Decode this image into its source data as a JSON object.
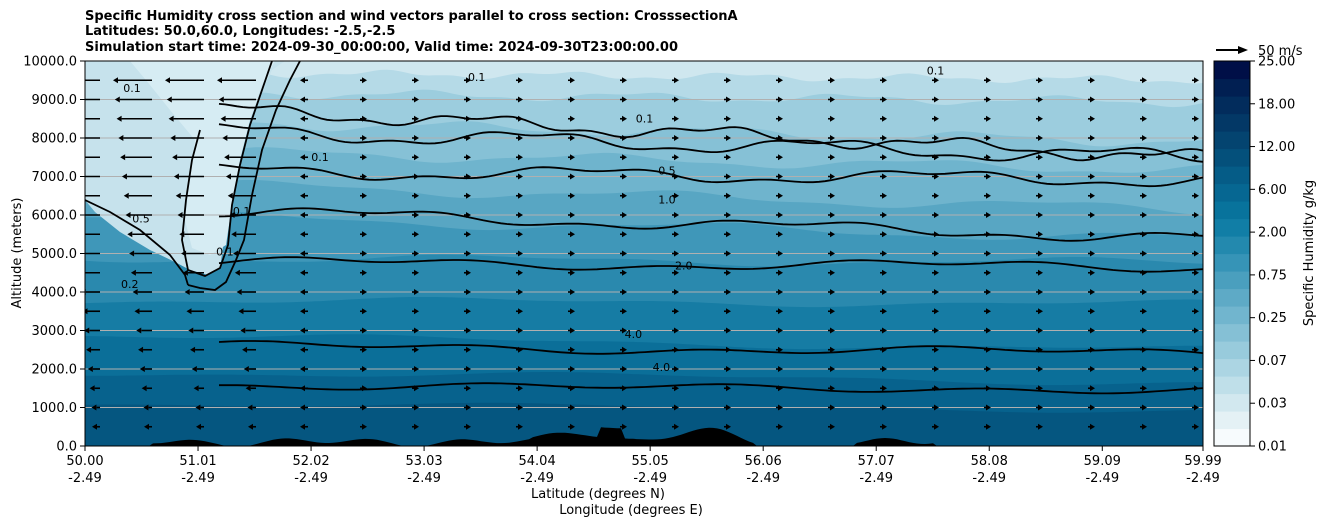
{
  "header": {
    "title_line1": "Specific Humidity cross section and wind vectors parallel to cross section: CrosssectionA",
    "title_line2": "Latitudes: 50.0,60.0, Longitudes: -2.5,-2.5",
    "title_line3": "Simulation start time: 2024-09-30_00:00:00, Valid time: 2024-09-30T23:00:00.00"
  },
  "wind_key": {
    "label": "50 m/s",
    "speed": 50
  },
  "colorbar": {
    "label": "Specific Humidity g/kg",
    "ticks": [
      "25.00",
      "18.00",
      "12.00",
      "6.00",
      "2.00",
      "0.75",
      "0.25",
      "0.07",
      "0.03",
      "0.01"
    ],
    "colors": [
      "#f7fbfd",
      "#e4f1f5",
      "#d2e8ef",
      "#bfdfe9",
      "#acd5e3",
      "#98cbdc",
      "#85c0d5",
      "#71b5ce",
      "#5eaac6",
      "#4a9fbe",
      "#3694b7",
      "#2389ae",
      "#117ea6",
      "#08739c",
      "#066792",
      "#055c87",
      "#04507b",
      "#044470",
      "#033866",
      "#022c5c",
      "#011f52",
      "#000f47"
    ]
  },
  "chart_data": {
    "type": "heatmap",
    "title": "Specific Humidity cross section and wind vectors parallel to cross section: CrosssectionA",
    "ylabel": "Altitude (meters)",
    "xlabel_lines": [
      "Latitude (degrees N)",
      "Longitude (degrees E)"
    ],
    "ylim": [
      0,
      10000
    ],
    "yticks": [
      "0.0",
      "1000.0",
      "2000.0",
      "3000.0",
      "4000.0",
      "5000.0",
      "6000.0",
      "7000.0",
      "8000.0",
      "9000.0",
      "10000.0"
    ],
    "xticks": [
      {
        "lat": "50.00",
        "lon": "-2.49"
      },
      {
        "lat": "51.01",
        "lon": "-2.49"
      },
      {
        "lat": "52.02",
        "lon": "-2.49"
      },
      {
        "lat": "53.03",
        "lon": "-2.49"
      },
      {
        "lat": "54.04",
        "lon": "-2.49"
      },
      {
        "lat": "55.05",
        "lon": "-2.49"
      },
      {
        "lat": "56.06",
        "lon": "-2.49"
      },
      {
        "lat": "57.07",
        "lon": "-2.49"
      },
      {
        "lat": "58.08",
        "lon": "-2.49"
      },
      {
        "lat": "59.09",
        "lon": "-2.49"
      },
      {
        "lat": "59.99",
        "lon": "-2.49"
      }
    ],
    "grid": "horizontal",
    "contour_labels": [
      {
        "text": "0.1",
        "lat": 53.5,
        "alt": 9480
      },
      {
        "text": "0.1",
        "lat": 50.42,
        "alt": 9200
      },
      {
        "text": "0.1",
        "lat": 57.6,
        "alt": 9650
      },
      {
        "text": "0.1",
        "lat": 55.0,
        "alt": 8400
      },
      {
        "text": "0.1",
        "lat": 51.4,
        "alt": 6000
      },
      {
        "text": "0.1",
        "lat": 51.25,
        "alt": 4950
      },
      {
        "text": "0.1",
        "lat": 52.1,
        "alt": 7400
      },
      {
        "text": "0.5",
        "lat": 50.5,
        "alt": 5800
      },
      {
        "text": "0.2",
        "lat": 50.4,
        "alt": 4100
      },
      {
        "text": "0.5",
        "lat": 55.2,
        "alt": 7050
      },
      {
        "text": "1.0",
        "lat": 55.2,
        "alt": 6300
      },
      {
        "text": "2.0",
        "lat": 55.35,
        "alt": 4580
      },
      {
        "text": "4.0",
        "lat": 54.9,
        "alt": 2800
      },
      {
        "text": "4.0",
        "lat": 55.15,
        "alt": 1950
      }
    ]
  }
}
